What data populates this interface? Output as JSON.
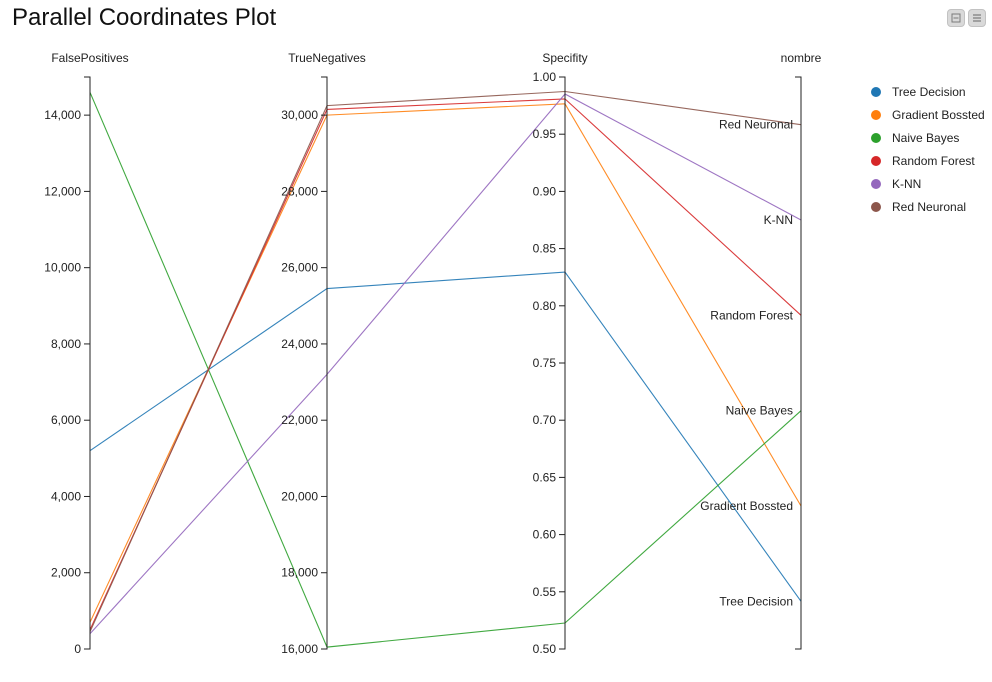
{
  "title": "Parallel Coordinates Plot",
  "toolbar": {
    "minimize_icon": "window-minimize-icon",
    "menu_icon": "hamburger-menu-icon"
  },
  "chart_data": {
    "type": "parallel_coordinates",
    "title": "Parallel Coordinates Plot",
    "axes": [
      {
        "name": "FalsePositives",
        "range": [
          0,
          15000
        ],
        "ticks": [
          0,
          2000,
          4000,
          6000,
          8000,
          10000,
          12000,
          14000
        ],
        "tick_labels": [
          "0",
          "2,000",
          "4,000",
          "6,000",
          "8,000",
          "10,000",
          "12,000",
          "14,000"
        ]
      },
      {
        "name": "TrueNegatives",
        "range": [
          16000,
          31000
        ],
        "ticks": [
          16000,
          18000,
          20000,
          22000,
          24000,
          26000,
          28000,
          30000
        ],
        "tick_labels": [
          "16,000",
          "18,000",
          "20,000",
          "22,000",
          "24,000",
          "26,000",
          "28,000",
          "30,000"
        ]
      },
      {
        "name": "Specifity",
        "range": [
          0.5,
          1.0
        ],
        "ticks": [
          0.5,
          0.55,
          0.6,
          0.65,
          0.7,
          0.75,
          0.8,
          0.85,
          0.9,
          0.95,
          1.0
        ],
        "tick_labels": [
          "0.50",
          "0.55",
          "0.60",
          "0.65",
          "0.70",
          "0.75",
          "0.80",
          "0.85",
          "0.90",
          "0.95",
          "1.00"
        ]
      },
      {
        "name": "nombre",
        "categorical": true,
        "categories": [
          "Tree Decision",
          "Gradient Bossted",
          "Naive Bayes",
          "Random Forest",
          "K-NN",
          "Red Neuronal"
        ]
      }
    ],
    "series": [
      {
        "name": "Tree Decision",
        "color": "#1f77b4",
        "values": [
          5200,
          25450,
          0.8295,
          "Tree Decision"
        ]
      },
      {
        "name": "Gradient Bossted",
        "color": "#ff7f0e",
        "values": [
          700,
          30000,
          0.9766,
          "Gradient Bossted"
        ]
      },
      {
        "name": "Naive Bayes",
        "color": "#2ca02c",
        "values": [
          14600,
          16050,
          0.5227,
          "Naive Bayes"
        ]
      },
      {
        "name": "Random Forest",
        "color": "#d62728",
        "values": [
          500,
          30150,
          0.9809,
          "Random Forest"
        ]
      },
      {
        "name": "K-NN",
        "color": "#9467bd",
        "values": [
          400,
          23200,
          0.9851,
          "K-NN"
        ]
      },
      {
        "name": "Red Neuronal",
        "color": "#8c564b",
        "values": [
          450,
          30250,
          0.9873,
          "Red Neuronal"
        ]
      }
    ],
    "legend": {
      "position": "top-right",
      "items": [
        "Tree Decision",
        "Gradient Bossted",
        "Naive Bayes",
        "Random Forest",
        "K-NN",
        "Red Neuronal"
      ]
    },
    "grid": false
  }
}
